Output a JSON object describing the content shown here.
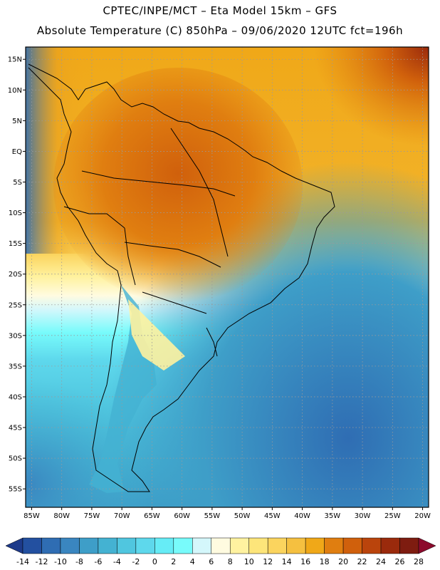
{
  "header": {
    "line1": "CPTEC/INPE/MCT –   Eta Model 15km – GFS",
    "line2": "Absolute Temperature (C) 850hPa – 09/06/2020 12UTC fct=196h"
  },
  "map": {
    "region": "South America",
    "lon_range": [
      -86,
      -19
    ],
    "lat_range": [
      -58,
      17
    ],
    "lat_ticks": [
      {
        "value": 15,
        "label": "15N"
      },
      {
        "value": 10,
        "label": "10N"
      },
      {
        "value": 5,
        "label": "5N"
      },
      {
        "value": 0,
        "label": "EQ"
      },
      {
        "value": -5,
        "label": "5S"
      },
      {
        "value": -10,
        "label": "10S"
      },
      {
        "value": -15,
        "label": "15S"
      },
      {
        "value": -20,
        "label": "20S"
      },
      {
        "value": -25,
        "label": "25S"
      },
      {
        "value": -30,
        "label": "30S"
      },
      {
        "value": -35,
        "label": "35S"
      },
      {
        "value": -40,
        "label": "40S"
      },
      {
        "value": -45,
        "label": "45S"
      },
      {
        "value": -50,
        "label": "50S"
      },
      {
        "value": -55,
        "label": "55S"
      }
    ],
    "lon_ticks": [
      {
        "value": -85,
        "label": "85W"
      },
      {
        "value": -80,
        "label": "80W"
      },
      {
        "value": -75,
        "label": "75W"
      },
      {
        "value": -70,
        "label": "70W"
      },
      {
        "value": -65,
        "label": "65W"
      },
      {
        "value": -60,
        "label": "60W"
      },
      {
        "value": -55,
        "label": "55W"
      },
      {
        "value": -50,
        "label": "50W"
      },
      {
        "value": -45,
        "label": "45W"
      },
      {
        "value": -40,
        "label": "40W"
      },
      {
        "value": -35,
        "label": "35W"
      },
      {
        "value": -30,
        "label": "30W"
      },
      {
        "value": -25,
        "label": "25W"
      },
      {
        "value": -20,
        "label": "20W"
      }
    ],
    "grid": "dotted"
  },
  "colorbar": {
    "levels": [
      "-14",
      "-12",
      "-10",
      "-8",
      "-6",
      "-4",
      "-2",
      "0",
      "2",
      "4",
      "6",
      "8",
      "10",
      "12",
      "14",
      "16",
      "18",
      "20",
      "22",
      "24",
      "26",
      "28"
    ],
    "colors": [
      "#1d3a8a",
      "#2350a0",
      "#2f6db3",
      "#3a86c0",
      "#3e9ec8",
      "#44b2d2",
      "#50c6df",
      "#5ed8ec",
      "#66ecf6",
      "#78fbfb",
      "#d4f7fb",
      "#fffbe0",
      "#fff2a0",
      "#fde57a",
      "#fbd45e",
      "#f5c040",
      "#f0a818",
      "#e07e10",
      "#d0600c",
      "#ba440c",
      "#9a2a0c",
      "#7e1c10",
      "#8c0a2c"
    ]
  }
}
